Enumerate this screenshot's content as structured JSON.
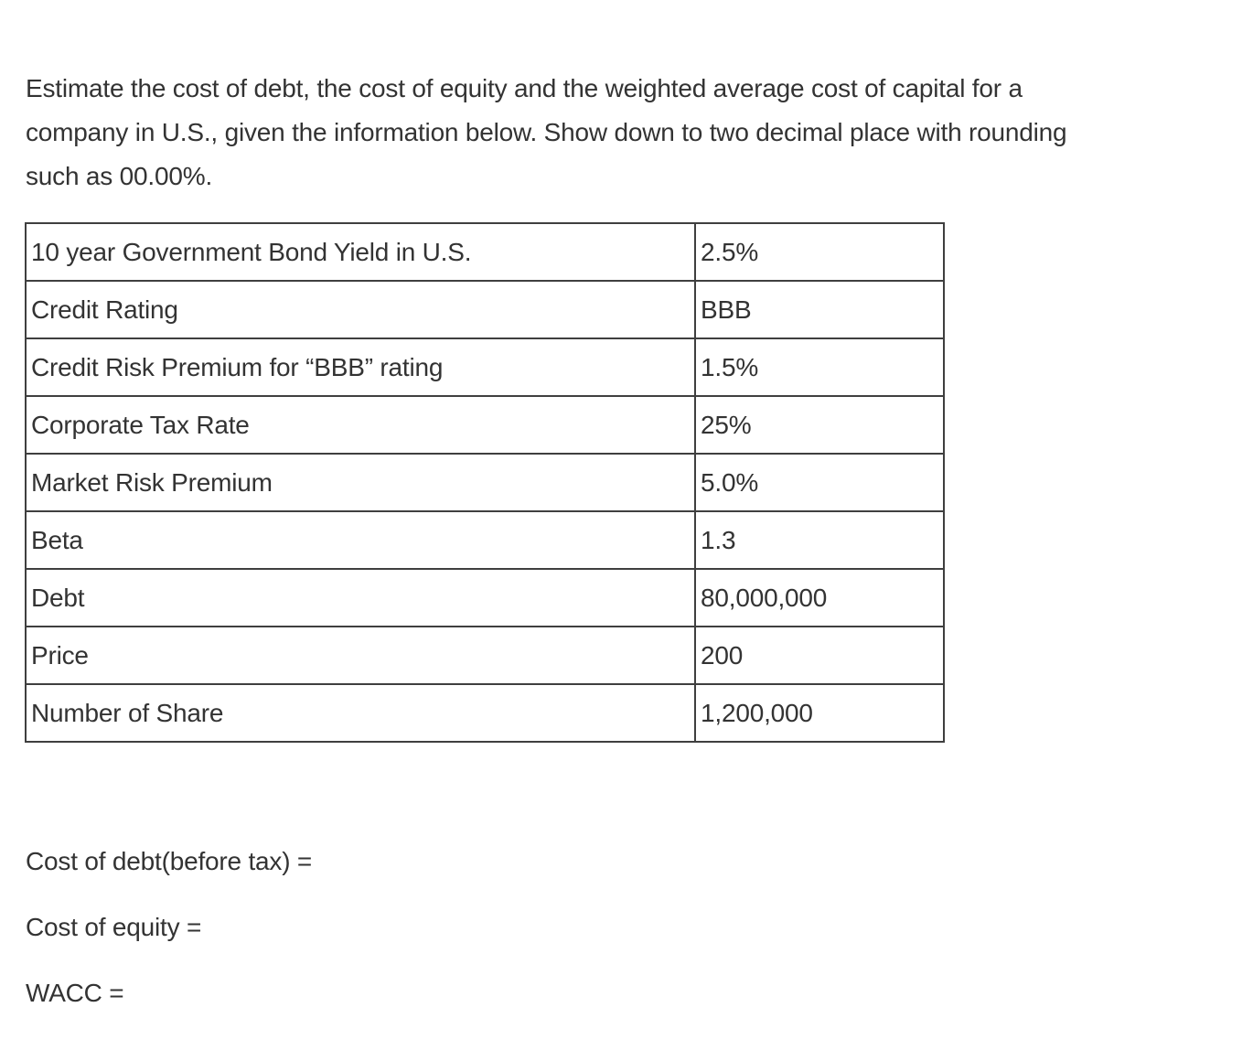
{
  "question": {
    "full_text": "Estimate the cost of debt, the cost of equity and the weighted average cost of capital for a company in U.S., given the information below. Show down to two decimal place with rounding such as 00.00%.",
    "lines": [
      "Estimate the cost of debt, the cost of equity and the weighted average cost of capital for a",
      "company in U.S., given the information below. Show down to two decimal place with rounding",
      "such as 00.00%."
    ]
  },
  "table": {
    "rows": [
      {
        "label": "10 year Government Bond Yield in U.S.",
        "value": "2.5%"
      },
      {
        "label": "Credit Rating",
        "value": "BBB"
      },
      {
        "label": "Credit Risk Premium for “BBB” rating",
        "value": "1.5%"
      },
      {
        "label": "Corporate Tax Rate",
        "value": "25%"
      },
      {
        "label": "Market Risk Premium",
        "value": "5.0%"
      },
      {
        "label": "Beta",
        "value": "1.3"
      },
      {
        "label": "Debt",
        "value": "80,000,000"
      },
      {
        "label": "Price",
        "value": "200"
      },
      {
        "label": "Number of Share",
        "value": "1,200,000"
      }
    ]
  },
  "answers": {
    "cost_of_debt_label": "Cost of debt(before tax) =",
    "cost_of_equity_label": "Cost of equity =",
    "wacc_label": "WACC ="
  },
  "colors": {
    "text": "#333333",
    "table_border": "#3f3f3f",
    "background": "#ffffff"
  }
}
